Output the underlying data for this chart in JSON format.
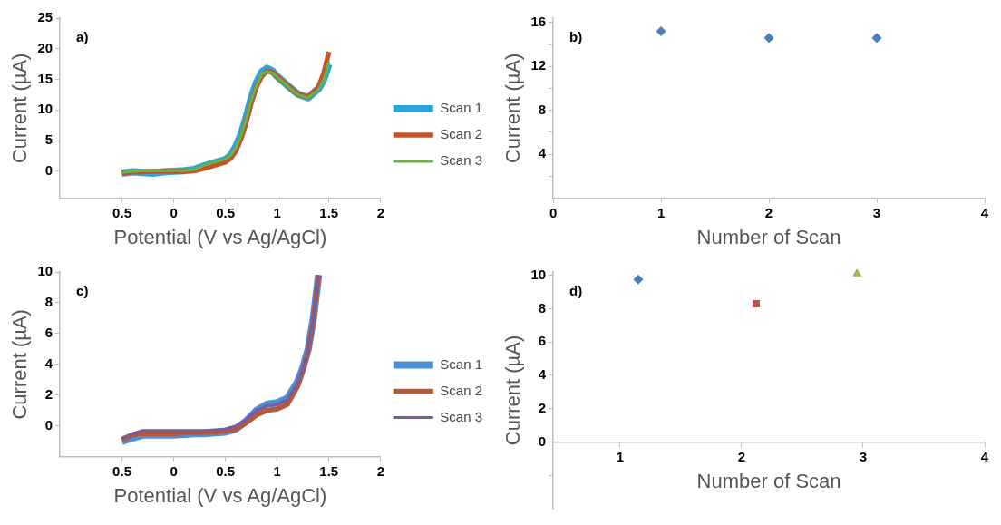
{
  "chart_data": [
    {
      "type": "line",
      "xlabel": "Potential (V vs Ag/AgCl)",
      "ylabel": "Current (µA)",
      "annotations": [
        "a)"
      ],
      "legend": "right",
      "marker": "none",
      "xlim": [
        -1.1,
        2
      ],
      "xticks": [
        {
          "value": -0.5,
          "label": "0.5"
        },
        0,
        0.5,
        1,
        1.5,
        2
      ],
      "ylim": [
        -4.4,
        25
      ],
      "yticks": [
        0,
        5,
        10,
        15,
        20,
        25
      ],
      "x": [
        -0.5,
        -0.4,
        -0.3,
        -0.2,
        -0.1,
        0,
        0.1,
        0.2,
        0.3,
        0.4,
        0.5,
        0.55,
        0.6,
        0.65,
        0.7,
        0.75,
        0.8,
        0.85,
        0.9,
        0.95,
        1.0,
        1.1,
        1.2,
        1.3,
        1.4,
        1.45,
        1.5
      ],
      "series": [
        {
          "name": "Scan 1",
          "color": "#2ea3dc",
          "values": [
            -0.3,
            -0.1,
            -0.2,
            -0.3,
            -0.1,
            0,
            0.1,
            0.3,
            0.9,
            1.4,
            1.9,
            2.6,
            4,
            6,
            8.8,
            12,
            14.5,
            16.2,
            16.8,
            16.4,
            15.5,
            14,
            12.6,
            12,
            13.5,
            15,
            17.5
          ]
        },
        {
          "name": "Scan 2",
          "color": "#c8502a",
          "values": [
            -0.3,
            -0.1,
            -0.1,
            0,
            0,
            0,
            0,
            0.1,
            0.5,
            1,
            1.5,
            2.1,
            3.3,
            5.3,
            8,
            11.2,
            13.8,
            15.5,
            16.3,
            16.2,
            15.5,
            14,
            12.6,
            12.1,
            13.8,
            16,
            19.5
          ]
        },
        {
          "name": "Scan 3",
          "color": "#6ab441",
          "values": [
            -0.2,
            0,
            0.1,
            0.1,
            0.1,
            0.1,
            0.1,
            0.3,
            1,
            1.5,
            2,
            2.6,
            3.8,
            5.8,
            8.5,
            11.6,
            14,
            15.8,
            16.3,
            16.1,
            15.4,
            13.9,
            12.5,
            12,
            13.4,
            15,
            17.9
          ]
        }
      ]
    },
    {
      "type": "scatter",
      "xlabel": "Number of Scan",
      "ylabel": "Current (µA)",
      "annotations": [
        "b)"
      ],
      "marker": "diamond",
      "xlim": [
        0,
        4
      ],
      "xticks": [
        0,
        1,
        2,
        3,
        4
      ],
      "ylim": [
        0,
        16.4
      ],
      "yticks": [
        {
          "value": 2,
          "label": null
        },
        4,
        {
          "value": 6,
          "label": null
        },
        8,
        {
          "value": 10,
          "label": null
        },
        12,
        {
          "value": 14,
          "label": null
        },
        16
      ],
      "x": [
        1,
        2,
        3
      ],
      "series": [
        {
          "color": "#4a7ebf",
          "values": [
            15.2,
            14.6,
            14.6
          ]
        }
      ]
    },
    {
      "type": "line",
      "xlabel": "Potential (V vs Ag/AgCl)",
      "ylabel": "Current (µA)",
      "annotations": [
        "c)"
      ],
      "legend": "right",
      "marker": "none",
      "xlim": [
        -1.1,
        2
      ],
      "xticks": [
        {
          "value": -0.5,
          "label": "0.5"
        },
        0,
        0.5,
        1,
        1.5,
        2
      ],
      "ylim": [
        -2,
        10
      ],
      "yticks": [
        0,
        2,
        4,
        6,
        8,
        10
      ],
      "x": [
        -0.5,
        -0.4,
        -0.3,
        -0.2,
        -0.1,
        0,
        0.1,
        0.2,
        0.3,
        0.4,
        0.5,
        0.6,
        0.7,
        0.8,
        0.9,
        1.0,
        1.1,
        1.2,
        1.25,
        1.3,
        1.35,
        1.4
      ],
      "series": [
        {
          "name": "Scan 1",
          "color": "#4a8fd8",
          "values": [
            -1,
            -0.8,
            -0.6,
            -0.6,
            -0.6,
            -0.6,
            -0.55,
            -0.5,
            -0.5,
            -0.45,
            -0.4,
            -0.2,
            0.3,
            1,
            1.4,
            1.5,
            1.8,
            2.9,
            3.8,
            5,
            7,
            9.8
          ]
        },
        {
          "name": "Scan 2",
          "color": "#b5583a",
          "values": [
            -0.9,
            -0.6,
            -0.5,
            -0.5,
            -0.5,
            -0.5,
            -0.45,
            -0.45,
            -0.4,
            -0.4,
            -0.35,
            -0.2,
            0.2,
            0.7,
            1,
            1.1,
            1.4,
            2.6,
            3.6,
            4.9,
            6.9,
            9.8
          ]
        },
        {
          "name": "Scan 3",
          "color": "#7b5a9e",
          "values": [
            -0.8,
            -0.5,
            -0.3,
            -0.3,
            -0.3,
            -0.3,
            -0.3,
            -0.3,
            -0.3,
            -0.25,
            -0.2,
            0,
            0.4,
            1,
            1.3,
            1.4,
            1.7,
            2.8,
            3.7,
            5,
            7,
            9.8
          ]
        }
      ]
    },
    {
      "type": "scatter",
      "xlabel": "Number of Scan",
      "ylabel": "Current (µA)",
      "annotations": [
        "d)"
      ],
      "xlim": [
        0.45,
        4
      ],
      "xticks": [
        1,
        2,
        3,
        4
      ],
      "ylim": [
        -4,
        10.2
      ],
      "yticks": [
        {
          "value": -2,
          "label": null
        },
        0,
        2,
        4,
        6,
        8,
        10
      ],
      "series": [
        {
          "color": "#4a7ebf",
          "marker": "diamond",
          "x": [
            1.15
          ],
          "values": [
            9.75
          ]
        },
        {
          "color": "#c0504d",
          "marker": "square",
          "x": [
            2.12
          ],
          "values": [
            8.3
          ]
        },
        {
          "color": "#9bbb59",
          "marker": "triangle",
          "x": [
            2.95
          ],
          "values": [
            10.1
          ]
        }
      ]
    }
  ]
}
